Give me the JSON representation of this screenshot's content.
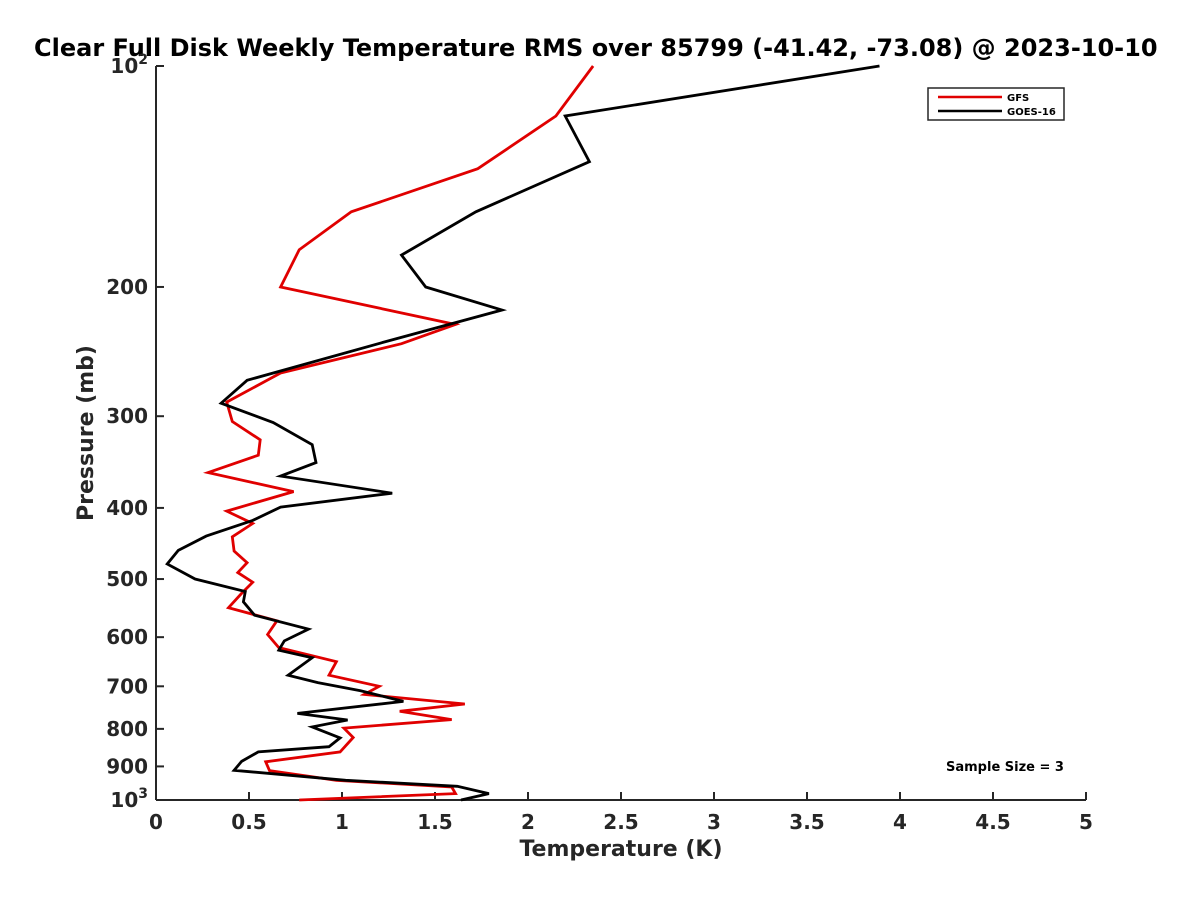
{
  "chart_data": {
    "type": "line",
    "title": "Clear Full Disk Weekly Temperature RMS over 85799 (-41.42, -73.08) @ 2023-10-10",
    "xlabel": "Temperature (K)",
    "ylabel": "Pressure (mb)",
    "xlim": [
      0,
      5
    ],
    "ylim": [
      100,
      1000
    ],
    "y_scale": "log",
    "y_reversed": true,
    "x_ticks": [
      "0",
      "0.5",
      "1",
      "1.5",
      "2",
      "2.5",
      "3",
      "3.5",
      "4",
      "4.5",
      "5"
    ],
    "y_ticks": [
      {
        "value": 100,
        "label": "10",
        "sup": "2"
      },
      {
        "value": 200,
        "label": "200",
        "sup": ""
      },
      {
        "value": 300,
        "label": "300",
        "sup": ""
      },
      {
        "value": 400,
        "label": "400",
        "sup": ""
      },
      {
        "value": 500,
        "label": "500",
        "sup": ""
      },
      {
        "value": 600,
        "label": "600",
        "sup": ""
      },
      {
        "value": 700,
        "label": "700",
        "sup": ""
      },
      {
        "value": 800,
        "label": "800",
        "sup": ""
      },
      {
        "value": 900,
        "label": "900",
        "sup": ""
      },
      {
        "value": 1000,
        "label": "10",
        "sup": "3"
      }
    ],
    "grid": false,
    "legend_position": "top-right",
    "annotation": "Sample Size = 3",
    "series": [
      {
        "name": "GFS",
        "color": "#e00000",
        "x": [
          2.35,
          2.15,
          1.73,
          1.05,
          0.77,
          0.67,
          1.61,
          1.32,
          0.67,
          0.38,
          0.41,
          0.56,
          0.55,
          0.28,
          0.74,
          0.38,
          0.52,
          0.41,
          0.42,
          0.49,
          0.44,
          0.52,
          0.46,
          0.39,
          0.65,
          0.6,
          0.66,
          0.97,
          0.93,
          1.2,
          1.12,
          1.66,
          1.31,
          1.59,
          1.01,
          1.06,
          0.99,
          0.59,
          0.61,
          0.97,
          1.59,
          1.61,
          0.77
        ],
        "y": [
          100,
          117,
          138,
          158,
          178,
          200,
          225,
          239,
          262,
          287,
          305,
          323,
          339,
          358,
          380,
          404,
          420,
          438,
          458,
          475,
          490,
          505,
          523,
          547,
          570,
          595,
          620,
          648,
          676,
          700,
          718,
          740,
          757,
          777,
          798,
          822,
          860,
          887,
          912,
          940,
          960,
          980,
          1000
        ]
      },
      {
        "name": "GOES-16",
        "color": "#000000",
        "x": [
          3.89,
          2.2,
          2.33,
          1.72,
          1.32,
          1.45,
          1.86,
          1.22,
          0.49,
          0.35,
          0.63,
          0.84,
          0.86,
          0.67,
          1.27,
          0.67,
          0.52,
          0.27,
          0.12,
          0.06,
          0.21,
          0.48,
          0.47,
          0.53,
          0.82,
          0.69,
          0.66,
          0.84,
          0.71,
          0.87,
          1.1,
          1.33,
          0.76,
          1.03,
          0.84,
          0.99,
          0.93,
          0.55,
          0.46,
          0.42,
          1.02,
          1.62,
          1.79,
          1.64
        ],
        "y": [
          100,
          117,
          135,
          158,
          181,
          200,
          215,
          238,
          268,
          288,
          306,
          328,
          347,
          362,
          382,
          399,
          416,
          437,
          457,
          477,
          500,
          520,
          537,
          560,
          585,
          607,
          625,
          640,
          676,
          692,
          710,
          734,
          762,
          778,
          795,
          823,
          846,
          860,
          886,
          911,
          940,
          958,
          980,
          1000
        ]
      }
    ]
  }
}
